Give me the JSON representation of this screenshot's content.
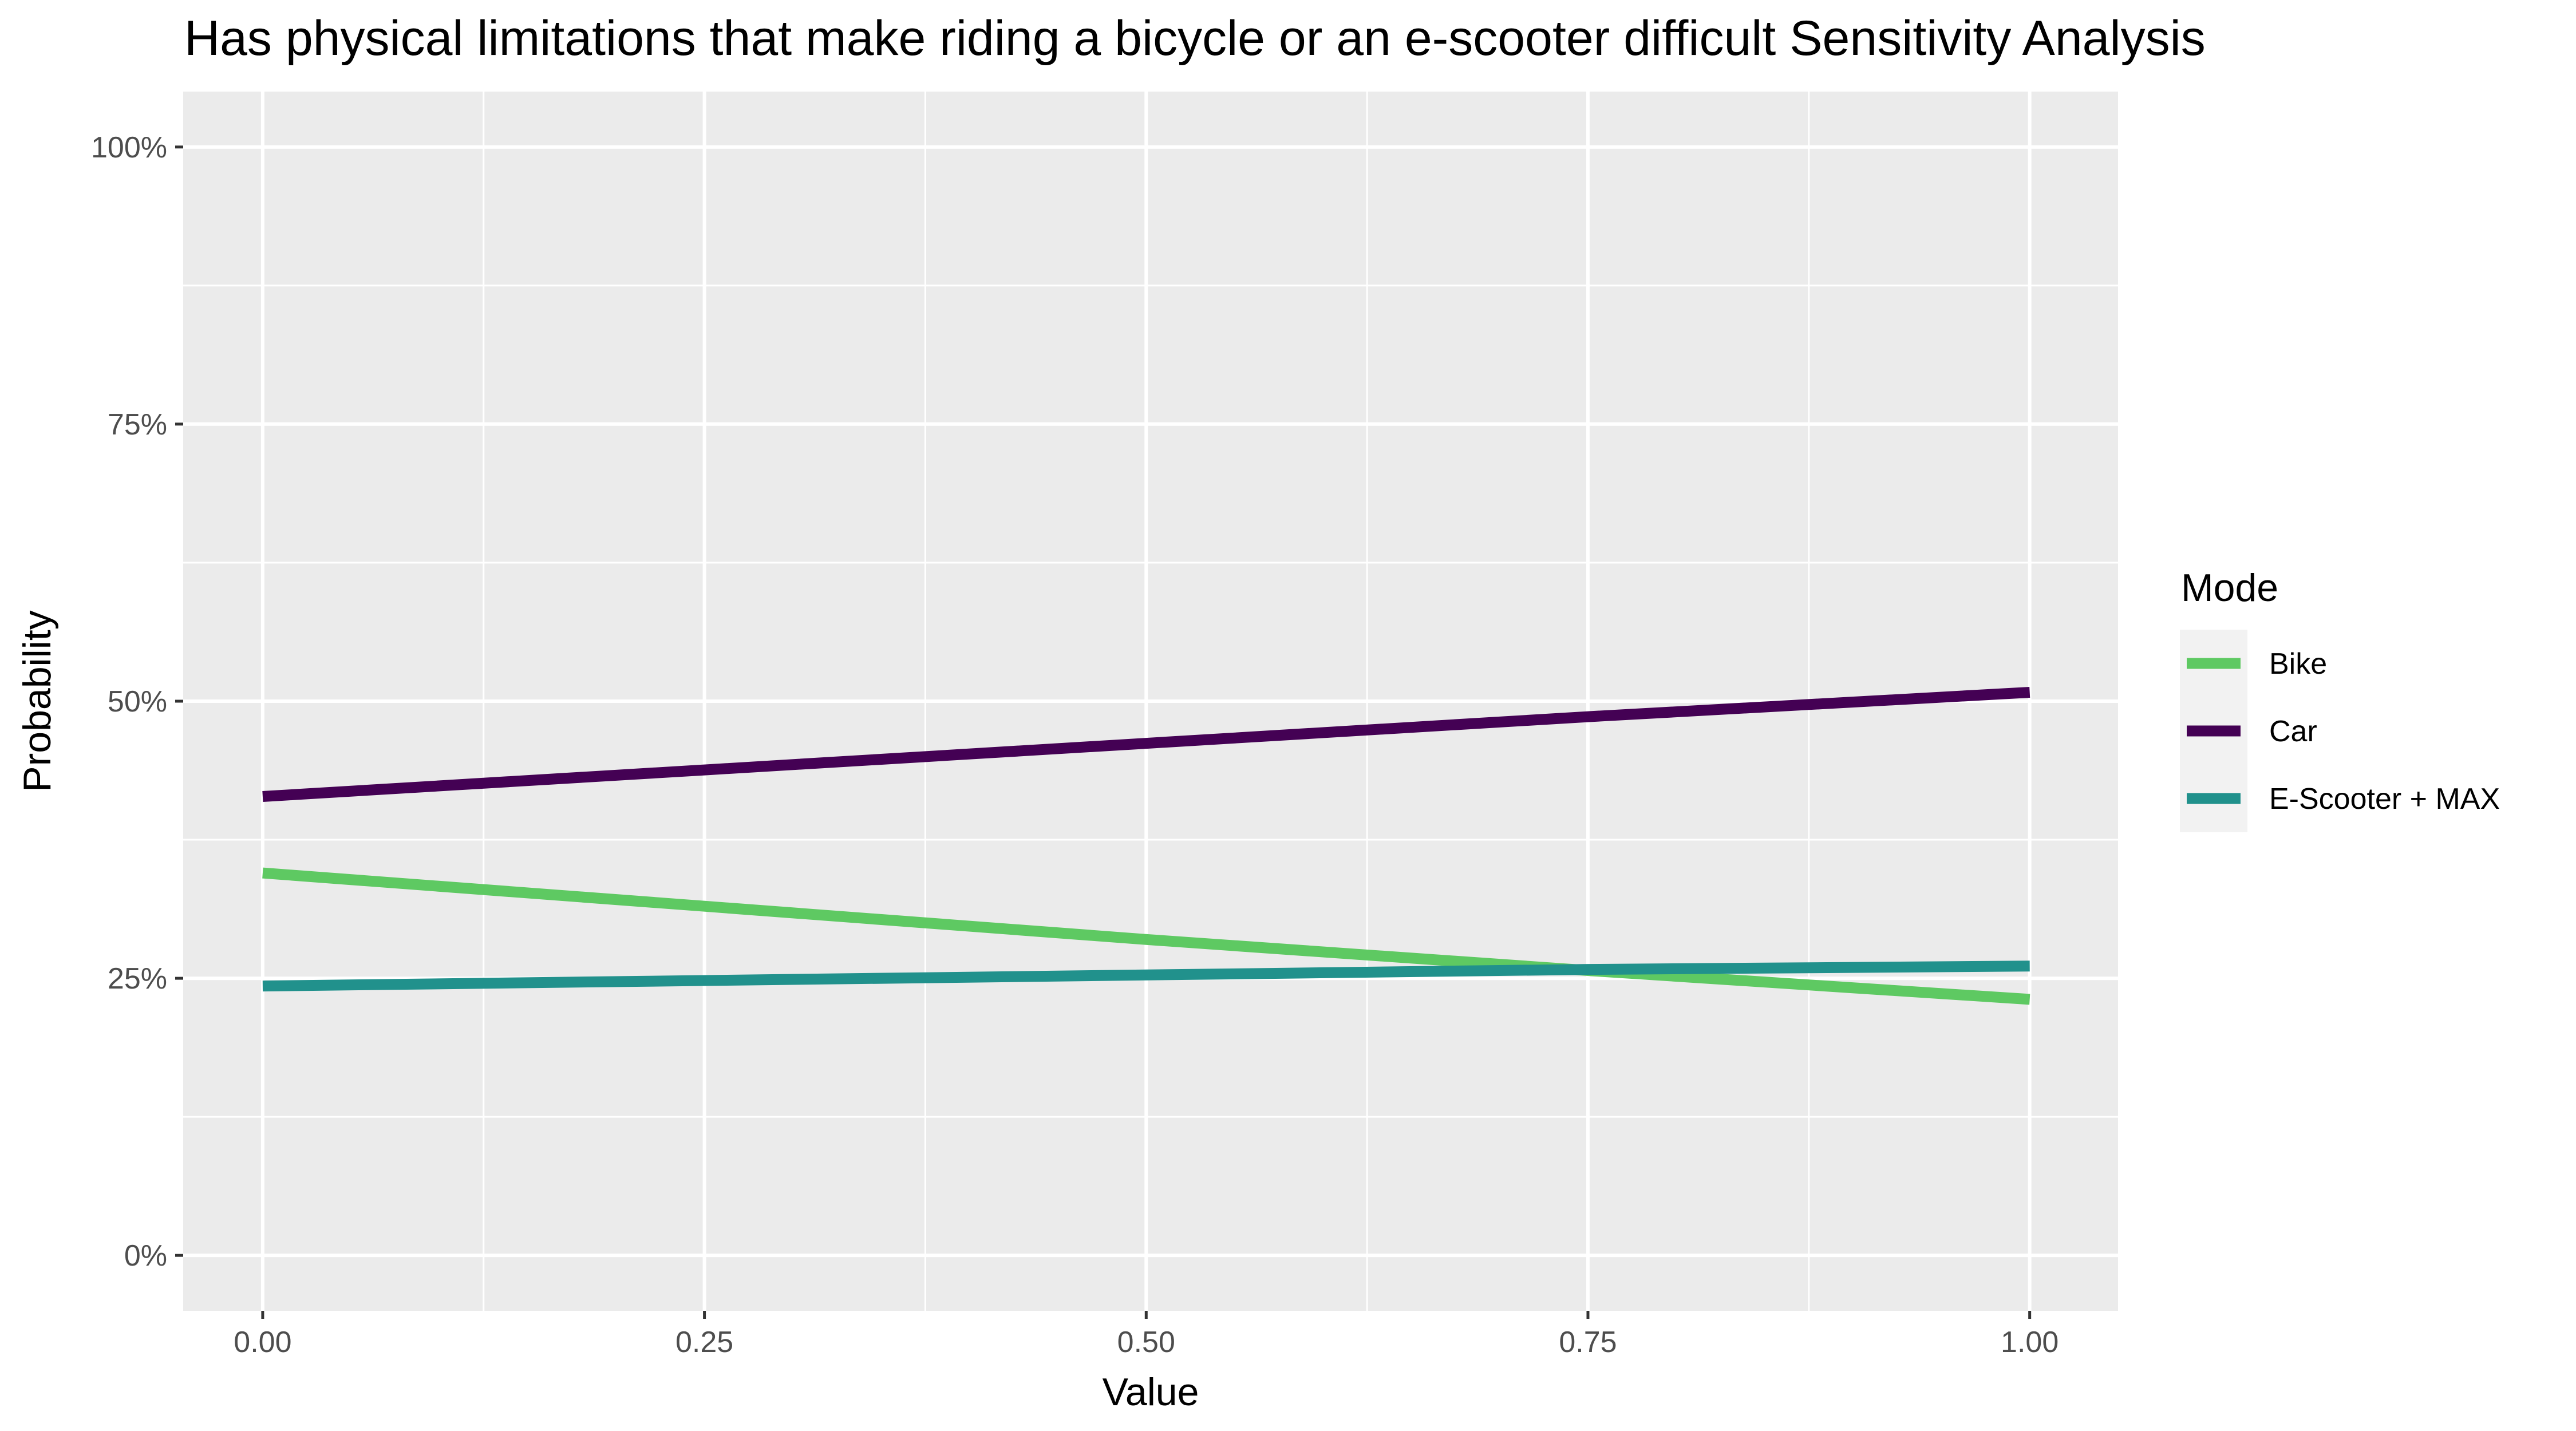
{
  "chart_data": {
    "type": "line",
    "title": "Has physical limitations that make riding a bicycle or an e-scooter difficult Sensitivity Analysis",
    "xlabel": "Value",
    "ylabel": "Probability",
    "xlim": [
      -0.045,
      1.05
    ],
    "ylim": [
      -0.05,
      1.05
    ],
    "x_ticks": [
      0.0,
      0.25,
      0.5,
      0.75,
      1.0
    ],
    "x_tick_labels": [
      "0.00",
      "0.25",
      "0.50",
      "0.75",
      "1.00"
    ],
    "y_ticks": [
      0.0,
      0.25,
      0.5,
      0.75,
      1.0
    ],
    "y_tick_labels": [
      "0%",
      "25%",
      "50%",
      "75%",
      "100%"
    ],
    "grid": true,
    "legend": {
      "title": "Mode",
      "position": "right"
    },
    "x": [
      0.0,
      0.25,
      0.5,
      0.75,
      1.0
    ],
    "series": [
      {
        "name": "Bike",
        "color": "#5ec962",
        "values": [
          0.345,
          0.315,
          0.285,
          0.257,
          0.231
        ]
      },
      {
        "name": "Car",
        "color": "#440154",
        "values": [
          0.414,
          0.438,
          0.462,
          0.486,
          0.508
        ]
      },
      {
        "name": "E-Scooter + MAX",
        "color": "#21918c",
        "values": [
          0.243,
          0.248,
          0.253,
          0.258,
          0.261
        ]
      }
    ]
  }
}
